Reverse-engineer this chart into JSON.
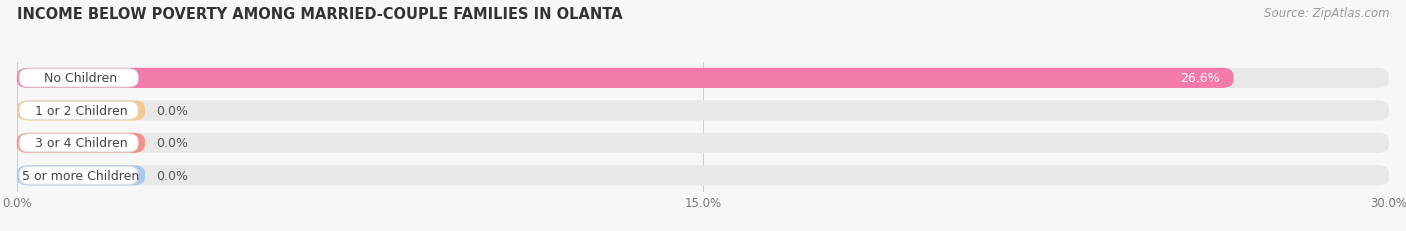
{
  "title": "INCOME BELOW POVERTY AMONG MARRIED-COUPLE FAMILIES IN OLANTA",
  "source": "Source: ZipAtlas.com",
  "categories": [
    "No Children",
    "1 or 2 Children",
    "3 or 4 Children",
    "5 or more Children"
  ],
  "values": [
    26.6,
    0.0,
    0.0,
    0.0
  ],
  "bar_colors": [
    "#f47aaa",
    "#f5c98a",
    "#f4908a",
    "#a8c8f0"
  ],
  "xlim": [
    0,
    30.0
  ],
  "xticks": [
    0.0,
    15.0,
    30.0
  ],
  "xtick_labels": [
    "0.0%",
    "15.0%",
    "30.0%"
  ],
  "background_color": "#f7f7f7",
  "bar_bg_color": "#e8e8e8",
  "title_fontsize": 10.5,
  "source_fontsize": 8.5,
  "label_fontsize": 9,
  "value_fontsize": 9,
  "zero_bar_width": 2.8
}
